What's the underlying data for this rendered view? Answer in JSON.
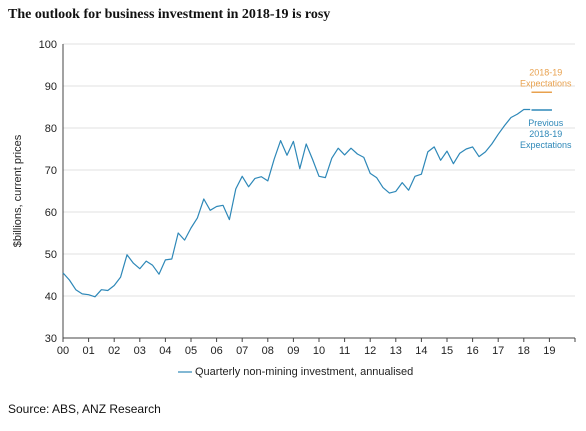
{
  "title": "The outlook for business investment in 2018-19 is rosy",
  "source": "Source: ABS, ANZ Research",
  "chart_data": {
    "type": "line",
    "title": "The outlook for business investment in 2018-19 is rosy",
    "ylabel": "$billions, current prices",
    "xlabel": "",
    "ylim": [
      30,
      100
    ],
    "xlim": [
      0,
      20
    ],
    "yticks": [
      30,
      40,
      50,
      60,
      70,
      80,
      90,
      100
    ],
    "xtick_labels": [
      "00",
      "01",
      "02",
      "03",
      "04",
      "05",
      "06",
      "07",
      "08",
      "09",
      "10",
      "11",
      "12",
      "13",
      "14",
      "15",
      "16",
      "17",
      "18",
      "19"
    ],
    "grid": "horizontal",
    "legend_position": "bottom-center",
    "series": [
      {
        "name": "Quarterly non-mining investment, annualised",
        "color": "#2e88b8",
        "x": [
          0,
          0.25,
          0.5,
          0.75,
          1,
          1.25,
          1.5,
          1.75,
          2,
          2.25,
          2.5,
          2.75,
          3,
          3.25,
          3.5,
          3.75,
          4,
          4.25,
          4.5,
          4.75,
          5,
          5.25,
          5.5,
          5.75,
          6,
          6.25,
          6.5,
          6.75,
          7,
          7.25,
          7.5,
          7.75,
          8,
          8.25,
          8.5,
          8.75,
          9,
          9.25,
          9.5,
          9.75,
          10,
          10.25,
          10.5,
          10.75,
          11,
          11.25,
          11.5,
          11.75,
          12,
          12.25,
          12.5,
          12.75,
          13,
          13.25,
          13.5,
          13.75,
          14,
          14.25,
          14.5,
          14.75,
          15,
          15.25,
          15.5,
          15.75,
          16,
          16.25,
          16.5,
          16.75,
          17,
          17.25,
          17.5,
          17.75,
          18,
          18.25
        ],
        "values": [
          45.5,
          43.8,
          41.5,
          40.5,
          40.3,
          39.8,
          41.5,
          41.3,
          42.5,
          44.5,
          49.8,
          47.8,
          46.5,
          48.3,
          47.3,
          45.2,
          48.6,
          48.8,
          55.0,
          53.3,
          56.2,
          58.6,
          63.1,
          60.4,
          61.3,
          61.6,
          58.2,
          65.5,
          68.5,
          66.0,
          68.0,
          68.4,
          67.4,
          72.6,
          77.0,
          73.5,
          76.8,
          70.3,
          76.2,
          72.5,
          68.5,
          68.2,
          72.8,
          75.2,
          73.6,
          75.2,
          73.8,
          73.0,
          69.2,
          68.2,
          65.8,
          64.5,
          64.9,
          67.0,
          65.2,
          68.5,
          69.0,
          74.3,
          75.5,
          72.3,
          74.5,
          71.5,
          74.0,
          75.0,
          75.5,
          73.2,
          74.3,
          76.2,
          78.5,
          80.6,
          82.5,
          83.3,
          84.4,
          84.4
        ]
      }
    ],
    "expectations": [
      {
        "label": [
          "2018-19",
          "Expectations"
        ],
        "value": 88.5,
        "x_range": [
          18.3,
          19.1
        ],
        "color": "#e8a14e"
      },
      {
        "label": [
          "Previous",
          "2018-19",
          "Expectations"
        ],
        "value": 84.3,
        "x_range": [
          18.3,
          19.1
        ],
        "color": "#2e88b8"
      }
    ]
  }
}
